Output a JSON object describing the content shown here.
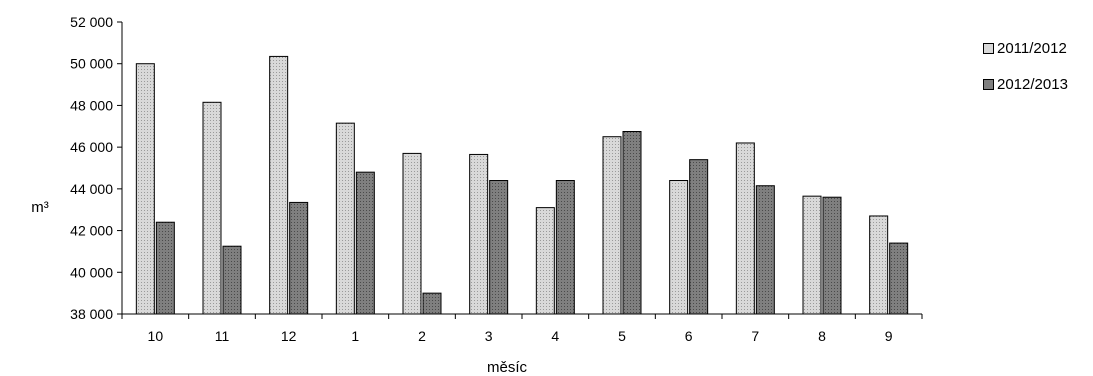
{
  "chart_data": {
    "type": "bar",
    "categories": [
      "10",
      "11",
      "12",
      "1",
      "2",
      "3",
      "4",
      "5",
      "6",
      "7",
      "8",
      "9"
    ],
    "series": [
      {
        "name": "2011/2012",
        "color": "#d9d9d9",
        "values": [
          50000,
          48150,
          50350,
          47150,
          45700,
          45650,
          43100,
          46500,
          44400,
          46200,
          43650,
          42700
        ]
      },
      {
        "name": "2012/2013",
        "color": "#7f7f7f",
        "values": [
          42400,
          41250,
          43350,
          44800,
          39000,
          44400,
          44400,
          46750,
          45400,
          44150,
          43600,
          41400
        ]
      }
    ],
    "xlabel": "měsíc",
    "ylabel": "m³",
    "ylim": [
      38000,
      52000
    ],
    "yticks": [
      38000,
      40000,
      42000,
      44000,
      46000,
      48000,
      50000,
      52000
    ],
    "ytick_labels": [
      "38 000",
      "40 000",
      "42 000",
      "44 000",
      "46 000",
      "48 000",
      "50 000",
      "52 000"
    ],
    "grid": false,
    "legend_position": "right"
  }
}
